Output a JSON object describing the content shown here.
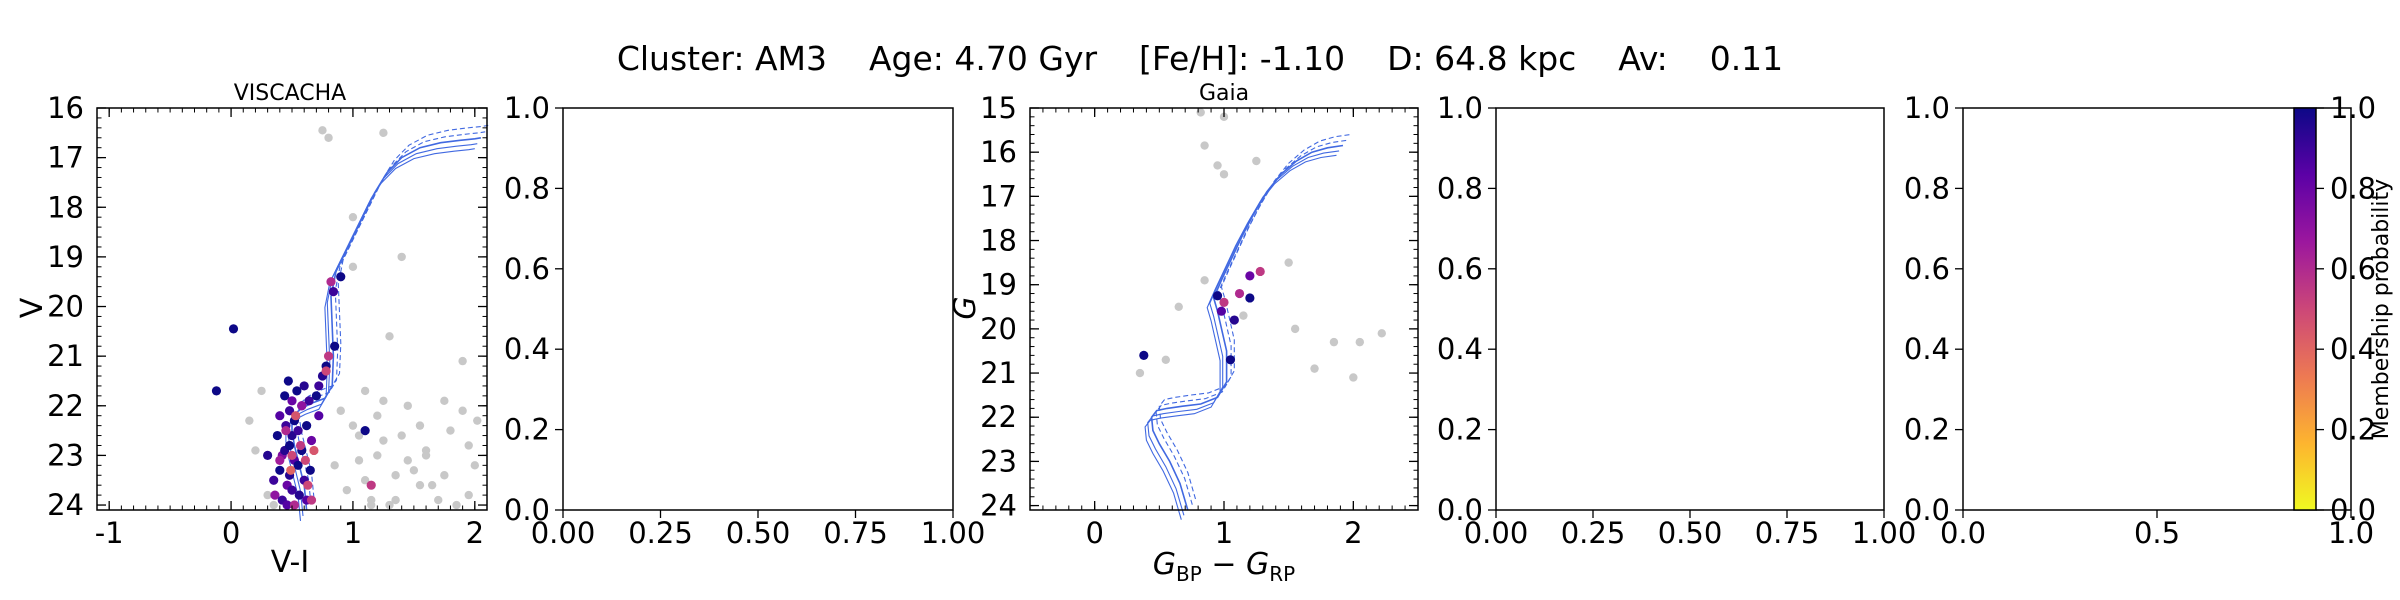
{
  "figure": {
    "suptitle": "Cluster: AM3    Age: 4.70 Gyr    [Fe/H]: -1.10    D: 64.8 kpc    Av:    0.11"
  },
  "colorbar": {
    "label": "Membership probability",
    "ticks": [
      "0.0",
      "0.2",
      "0.4",
      "0.6",
      "0.8",
      "1.0"
    ],
    "colors": [
      "#f0f921",
      "#fdb42f",
      "#ed7953",
      "#cc4778",
      "#9c179e",
      "#5c01a6",
      "#0d0887"
    ]
  },
  "colors": {
    "isochrone": "#4169e1",
    "non_member": "#c8c8c8"
  },
  "chart_data": [
    {
      "id": "viscacha",
      "type": "scatter",
      "title": "VISCACHA",
      "xlabel": "V-I",
      "ylabel": "V",
      "xlim": [
        -1.1,
        2.1
      ],
      "ylim": [
        24.1,
        16.0
      ],
      "xticks": [
        -1,
        0,
        1,
        2
      ],
      "xtick_labels": [
        "-1",
        "0",
        "1",
        "2"
      ],
      "yticks": [
        16,
        17,
        18,
        19,
        20,
        21,
        22,
        23,
        24
      ],
      "ytick_labels": [
        "16",
        "17",
        "18",
        "19",
        "20",
        "21",
        "22",
        "23",
        "24"
      ],
      "isochrone": {
        "x": [
          0.62,
          0.6,
          0.56,
          0.52,
          0.5,
          0.5,
          0.53,
          0.58,
          0.66,
          0.77,
          0.83,
          0.84,
          0.82,
          0.86,
          0.94,
          1.02,
          1.1,
          1.18,
          1.28,
          1.4,
          1.55,
          1.72,
          1.88,
          2.0,
          2.05
        ],
        "y": [
          24.1,
          23.6,
          23.2,
          22.8,
          22.5,
          22.3,
          22.15,
          22.05,
          21.95,
          21.85,
          21.6,
          21.0,
          19.8,
          19.3,
          18.9,
          18.5,
          18.1,
          17.7,
          17.3,
          17.0,
          16.8,
          16.7,
          16.65,
          16.62,
          16.6
        ]
      },
      "members": {
        "x": [
          -0.12,
          0.02,
          0.3,
          0.35,
          0.36,
          0.38,
          0.4,
          0.4,
          0.42,
          0.42,
          0.44,
          0.44,
          0.45,
          0.46,
          0.46,
          0.47,
          0.48,
          0.48,
          0.48,
          0.5,
          0.5,
          0.5,
          0.52,
          0.52,
          0.52,
          0.54,
          0.55,
          0.55,
          0.56,
          0.58,
          0.58,
          0.6,
          0.6,
          0.62,
          0.62,
          0.64,
          0.65,
          0.66,
          0.7,
          0.72,
          0.75,
          0.78,
          0.8,
          0.82,
          0.84,
          0.85,
          0.9,
          0.5,
          0.53,
          0.57,
          0.61,
          0.45,
          0.49,
          0.58,
          0.63,
          0.68,
          0.4,
          0.66,
          0.72,
          0.78,
          1.1,
          1.15
        ],
        "y": [
          21.7,
          20.45,
          23.0,
          23.5,
          23.8,
          22.6,
          22.2,
          23.3,
          23.0,
          23.9,
          21.8,
          22.9,
          22.4,
          23.6,
          24.0,
          21.5,
          22.1,
          22.8,
          23.4,
          21.9,
          22.6,
          23.7,
          22.3,
          23.1,
          24.0,
          21.7,
          22.5,
          23.2,
          23.8,
          22.0,
          22.9,
          21.6,
          23.5,
          22.4,
          23.9,
          21.9,
          23.3,
          22.7,
          21.8,
          22.2,
          21.4,
          21.2,
          21.0,
          19.5,
          19.7,
          20.8,
          19.4,
          23.0,
          22.2,
          22.8,
          23.1,
          22.5,
          23.3,
          22.0,
          23.6,
          22.9,
          23.1,
          23.9,
          21.6,
          21.3,
          22.5,
          23.6
        ],
        "prob": [
          1.0,
          1.0,
          0.95,
          0.9,
          0.7,
          1.0,
          0.85,
          1.0,
          0.75,
          0.9,
          1.0,
          0.95,
          0.9,
          0.8,
          0.85,
          1.0,
          0.9,
          1.0,
          0.95,
          0.8,
          0.95,
          0.9,
          1.0,
          0.85,
          0.6,
          1.0,
          0.9,
          1.0,
          0.95,
          0.85,
          1.0,
          0.95,
          0.9,
          1.0,
          0.85,
          0.9,
          1.0,
          0.8,
          1.0,
          0.85,
          0.95,
          1.0,
          0.55,
          0.6,
          0.9,
          1.0,
          1.0,
          0.5,
          0.45,
          0.55,
          0.5,
          0.6,
          0.4,
          0.7,
          0.5,
          0.45,
          0.65,
          0.55,
          0.9,
          0.5,
          1.0,
          0.55
        ]
      },
      "non_members": {
        "x": [
          0.75,
          0.8,
          1.25,
          1.0,
          0.25,
          0.15,
          1.4,
          1.0,
          1.1,
          1.3,
          1.55,
          1.75,
          1.95,
          1.9,
          1.6,
          1.2,
          0.3,
          1.05,
          1.35,
          1.45,
          1.65,
          1.8,
          2.0,
          1.15,
          1.25,
          0.9,
          1.1,
          0.2,
          1.7,
          1.85,
          1.5,
          1.4,
          1.95,
          2.02,
          1.3,
          1.2,
          0.95,
          0.85,
          1.6,
          1.75,
          1.9,
          1.05,
          1.15,
          1.35,
          1.55,
          0.35,
          1.0,
          1.25,
          1.45
        ],
        "y": [
          16.45,
          16.6,
          16.5,
          18.2,
          21.7,
          22.3,
          19.0,
          19.2,
          21.7,
          20.6,
          22.4,
          21.9,
          22.8,
          21.1,
          23.0,
          22.2,
          23.8,
          23.1,
          23.4,
          22.0,
          23.6,
          22.5,
          23.2,
          23.9,
          22.7,
          22.1,
          23.5,
          22.9,
          23.9,
          24.0,
          23.3,
          22.6,
          23.8,
          22.3,
          24.0,
          23.0,
          23.7,
          23.2,
          22.9,
          23.4,
          22.1,
          22.6,
          24.0,
          23.9,
          23.6,
          24.0,
          22.4,
          21.9,
          23.1
        ]
      }
    },
    {
      "id": "empty1",
      "type": "scatter",
      "title": "",
      "xlabel": "",
      "ylabel": "",
      "xlim": [
        0,
        1
      ],
      "ylim": [
        0,
        1
      ],
      "xticks": [
        0,
        0.25,
        0.5,
        0.75,
        1.0
      ],
      "xtick_labels": [
        "0.00",
        "0.25",
        "0.50",
        "0.75",
        "1.00"
      ],
      "yticks": [
        0,
        0.2,
        0.4,
        0.6,
        0.8,
        1.0
      ],
      "ytick_labels": [
        "0.0",
        "0.2",
        "0.4",
        "0.6",
        "0.8",
        "1.0"
      ]
    },
    {
      "id": "gaia",
      "type": "scatter",
      "title": "Gaia",
      "xlabel": "G_BP - G_RP",
      "ylabel": "G",
      "xlim": [
        -0.5,
        2.5
      ],
      "ylim": [
        24.1,
        15.0
      ],
      "xticks": [
        0,
        1,
        2
      ],
      "xtick_labels": [
        "0",
        "1",
        "2"
      ],
      "yticks": [
        15,
        16,
        17,
        18,
        19,
        20,
        21,
        22,
        23,
        24
      ],
      "ytick_labels": [
        "15",
        "16",
        "17",
        "18",
        "19",
        "20",
        "21",
        "22",
        "23",
        "24"
      ],
      "isochrone": {
        "x": [
          0.72,
          0.66,
          0.58,
          0.5,
          0.45,
          0.44,
          0.48,
          0.56,
          0.68,
          0.82,
          0.95,
          1.02,
          1.02,
          0.95,
          0.92,
          0.98,
          1.06,
          1.14,
          1.23,
          1.33,
          1.44,
          1.56,
          1.68,
          1.8,
          1.92
        ],
        "y": [
          24.1,
          23.5,
          23.0,
          22.6,
          22.3,
          22.0,
          21.85,
          21.8,
          21.75,
          21.7,
          21.55,
          21.2,
          20.5,
          19.6,
          19.3,
          18.9,
          18.4,
          17.9,
          17.4,
          16.9,
          16.5,
          16.2,
          16.0,
          15.9,
          15.85
        ]
      },
      "members": {
        "x": [
          0.38,
          1.05,
          0.98,
          1.0,
          1.08,
          1.12,
          1.2,
          1.2,
          1.28,
          0.95
        ],
        "y": [
          20.6,
          20.7,
          19.6,
          19.4,
          19.8,
          19.2,
          19.3,
          18.8,
          18.7,
          19.25
        ],
        "prob": [
          1.0,
          1.0,
          0.85,
          0.55,
          0.95,
          0.6,
          1.0,
          0.8,
          0.55,
          1.0
        ]
      },
      "non_members": {
        "x": [
          0.85,
          0.95,
          1.0,
          0.85,
          1.15,
          1.5,
          1.55,
          1.7,
          1.85,
          2.0,
          2.05,
          2.22,
          0.55,
          0.35,
          0.65,
          0.82,
          1.0,
          1.25
        ],
        "y": [
          15.85,
          16.3,
          16.5,
          18.9,
          19.7,
          18.5,
          20.0,
          20.9,
          20.3,
          21.1,
          20.3,
          20.1,
          20.7,
          21.0,
          19.5,
          15.1,
          15.2,
          16.2
        ]
      }
    },
    {
      "id": "empty2",
      "type": "scatter",
      "title": "",
      "xlabel": "",
      "ylabel": "",
      "xlim": [
        0,
        1
      ],
      "ylim": [
        0,
        1
      ],
      "xticks": [
        0,
        0.25,
        0.5,
        0.75,
        1.0
      ],
      "xtick_labels": [
        "0.00",
        "0.25",
        "0.50",
        "0.75",
        "1.00"
      ],
      "yticks": [
        0,
        0.2,
        0.4,
        0.6,
        0.8,
        1.0
      ],
      "ytick_labels": [
        "0.0",
        "0.2",
        "0.4",
        "0.6",
        "0.8",
        "1.0"
      ]
    },
    {
      "id": "empty3",
      "type": "scatter",
      "title": "",
      "xlabel": "",
      "ylabel": "",
      "xlim": [
        0,
        1
      ],
      "ylim": [
        0,
        1
      ],
      "xticks": [
        0,
        0.5,
        1.0
      ],
      "xtick_labels": [
        "0.0",
        "0.5",
        "1.0"
      ],
      "yticks": [
        0,
        0.2,
        0.4,
        0.6,
        0.8,
        1.0
      ],
      "ytick_labels": [
        "0.0",
        "0.2",
        "0.4",
        "0.6",
        "0.8",
        "1.0"
      ]
    }
  ]
}
